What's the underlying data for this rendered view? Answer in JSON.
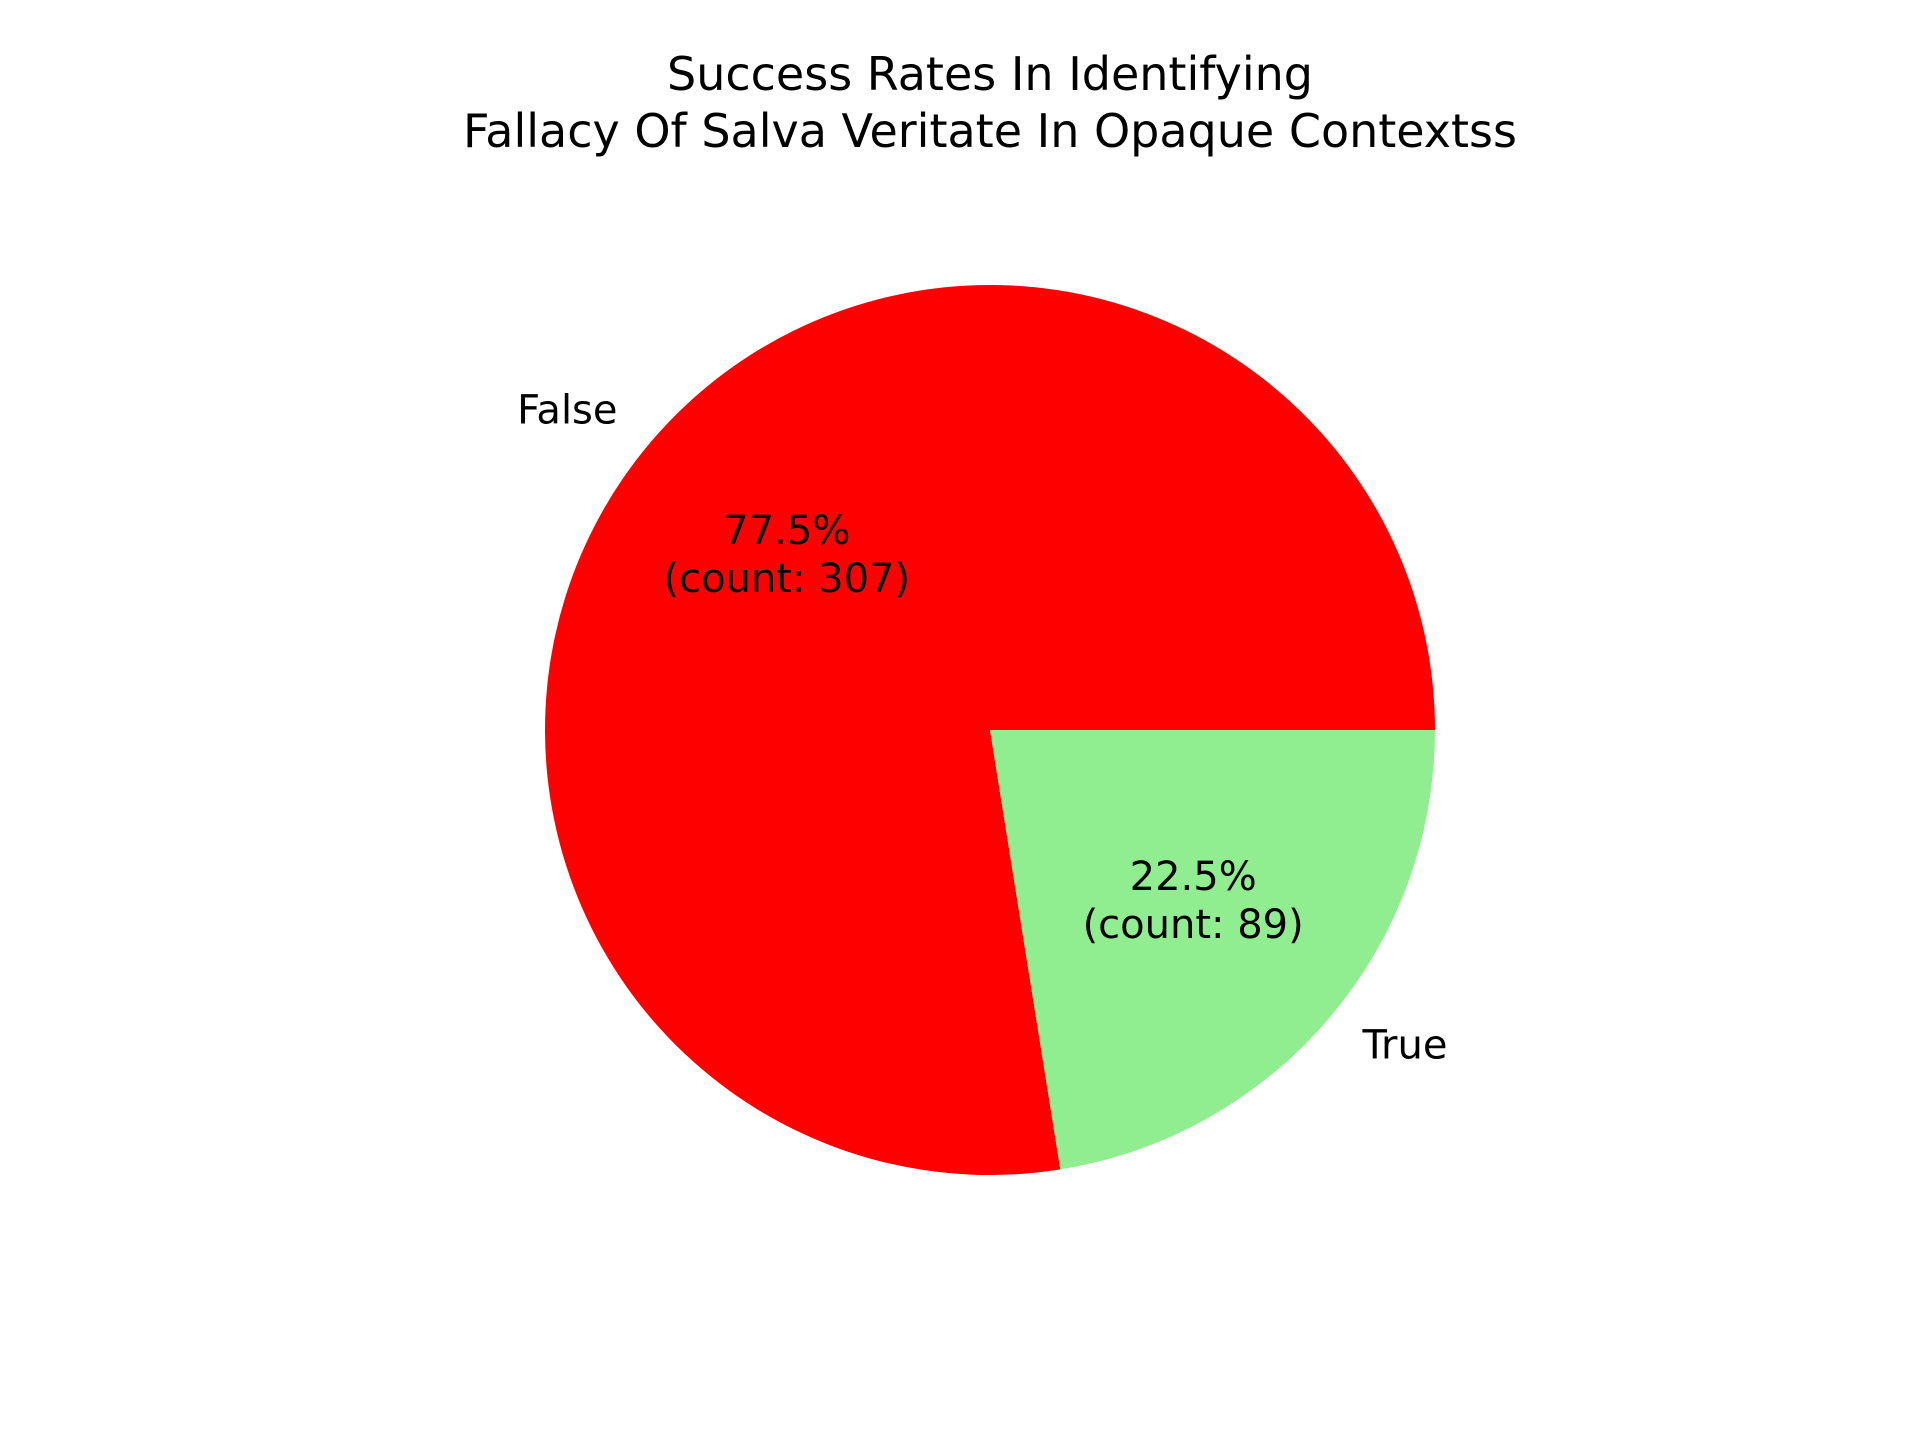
{
  "chart_data": {
    "type": "pie",
    "title_lines": [
      "Success Rates In Identifying",
      "Fallacy Of Salva Veritate In Opaque Contextss"
    ],
    "slices": [
      {
        "label": "False",
        "count": 307,
        "percent": 77.5,
        "pct_text": "77.5%",
        "count_text": "(count: 307)",
        "color": "#ff0000"
      },
      {
        "label": "True",
        "count": 89,
        "percent": 22.5,
        "pct_text": "22.5%",
        "count_text": "(count: 89)",
        "color": "#90ee90"
      }
    ],
    "start_angle_deg": 0,
    "direction": "counterclockwise",
    "legend": "none"
  }
}
